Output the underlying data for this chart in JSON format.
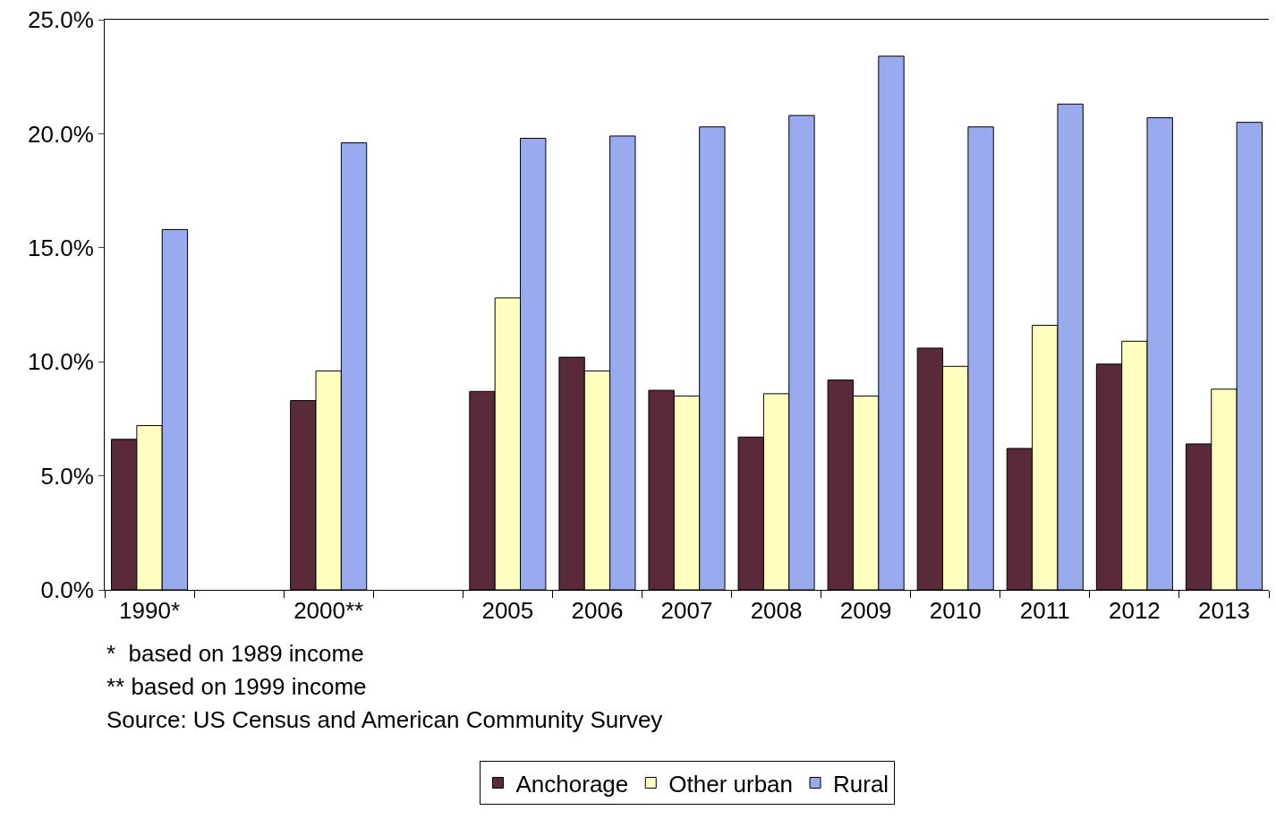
{
  "chart_data": {
    "type": "bar",
    "categories": [
      "1990*",
      null,
      "2000**",
      null,
      "2005",
      "2006",
      "2007",
      "2008",
      "2009",
      "2010",
      "2011",
      "2012",
      "2013"
    ],
    "series": [
      {
        "name": "Anchorage",
        "color": "#5a2a3a",
        "values": [
          6.6,
          null,
          8.3,
          null,
          8.7,
          10.2,
          8.75,
          6.7,
          9.2,
          10.6,
          6.2,
          9.9,
          6.4
        ]
      },
      {
        "name": "Other urban",
        "color": "#ffffc0",
        "values": [
          7.2,
          null,
          9.6,
          null,
          12.8,
          9.6,
          8.5,
          8.6,
          8.5,
          9.8,
          11.6,
          10.9,
          8.8
        ]
      },
      {
        "name": "Rural",
        "color": "#99aaee",
        "values": [
          15.8,
          null,
          19.6,
          null,
          19.8,
          19.9,
          20.3,
          20.8,
          23.4,
          20.3,
          21.3,
          20.7,
          20.5
        ]
      }
    ],
    "ylim": [
      0,
      25
    ],
    "yticks": [
      {
        "value": 0,
        "label": "0.0%"
      },
      {
        "value": 5,
        "label": "5.0%"
      },
      {
        "value": 10,
        "label": "10.0%"
      },
      {
        "value": 15,
        "label": "15.0%"
      },
      {
        "value": 20,
        "label": "20.0%"
      },
      {
        "value": 25,
        "label": "25.0%"
      }
    ],
    "grid": false,
    "legend": "bottom",
    "annotations": [
      "*  based on 1989 income",
      "** based on 1999 income",
      "Source: US Census and American Community Survey"
    ]
  }
}
